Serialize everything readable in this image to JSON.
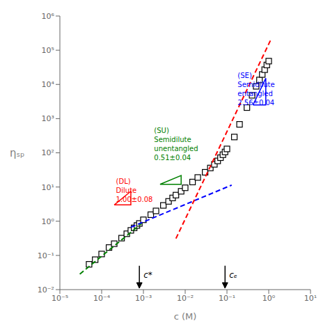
{
  "chart_data": {
    "type": "scatter",
    "xlabel": "c (M)",
    "ylabel": "ηₛₚ",
    "log": true,
    "grid": false,
    "xlim": [
      1e-05,
      10
    ],
    "ylim": [
      0.01,
      1000000
    ],
    "xticks": [
      {
        "value": 1e-05,
        "label": "10⁻⁵"
      },
      {
        "value": 0.0001,
        "label": "10⁻⁴"
      },
      {
        "value": 0.001,
        "label": "10⁻³"
      },
      {
        "value": 0.01,
        "label": "10⁻²"
      },
      {
        "value": 0.1,
        "label": "10⁻¹"
      },
      {
        "value": 1,
        "label": "10⁰"
      },
      {
        "value": 10,
        "label": "10¹"
      }
    ],
    "yticks": [
      {
        "value": 0.01,
        "label": "10⁻²"
      },
      {
        "value": 0.1,
        "label": "10⁻¹"
      },
      {
        "value": 1,
        "label": "10⁰"
      },
      {
        "value": 10,
        "label": "10¹"
      },
      {
        "value": 100,
        "label": "10²"
      },
      {
        "value": 1000,
        "label": "10³"
      },
      {
        "value": 10000,
        "label": "10⁴"
      },
      {
        "value": 100000,
        "label": "10⁵"
      },
      {
        "value": 1000000,
        "label": "10⁶"
      }
    ],
    "series": [
      {
        "type": "scatter",
        "color": "black",
        "marker": "square",
        "x": [
          5e-05,
          7e-05,
          0.0001,
          0.00015,
          0.0002,
          0.0003,
          0.0004,
          0.0005,
          0.0006,
          0.0007,
          0.0008,
          0.001,
          0.0015,
          0.002,
          0.003,
          0.004,
          0.005,
          0.006,
          0.008,
          0.01,
          0.015,
          0.02,
          0.03,
          0.04,
          0.05,
          0.06,
          0.07,
          0.08,
          0.09,
          0.1,
          0.15,
          0.2,
          0.3,
          0.4,
          0.5,
          0.6,
          0.7,
          0.8,
          0.9,
          1.0
        ],
        "values": [
          0.055,
          0.075,
          0.11,
          0.17,
          0.22,
          0.32,
          0.43,
          0.54,
          0.64,
          0.75,
          0.86,
          1.1,
          1.55,
          2.0,
          2.9,
          3.8,
          4.8,
          5.8,
          7.5,
          9.5,
          14.0,
          19.0,
          27.0,
          36.0,
          46.0,
          58.0,
          72.0,
          88.0,
          106.0,
          130.0,
          290.0,
          680.0,
          2100.0,
          4800.0,
          8800.0,
          13500.0,
          19500.0,
          27000.0,
          37000.0,
          48000.0
        ]
      },
      {
        "type": "line",
        "color": "green",
        "line_style": "dashed",
        "x": [
          3e-05,
          0.0009
        ],
        "values": [
          0.0285,
          0.855
        ]
      },
      {
        "type": "line",
        "color": "blue",
        "line_style": "dashed",
        "x": [
          0.0005,
          0.13
        ],
        "values": [
          0.6688,
          11.4013
        ]
      },
      {
        "type": "line",
        "color": "red",
        "line_style": "dashed",
        "x": [
          0.006,
          1.1
        ],
        "values": [
          0.3111,
          193531
        ]
      },
      {
        "type": "polygon",
        "color": "red",
        "x": [
          0.0002,
          0.0005,
          0.0005,
          0.0002
        ],
        "values": [
          3.0,
          3.0,
          7.5,
          3.0
        ]
      },
      {
        "type": "polygon",
        "color": "green",
        "x": [
          0.0025,
          0.008,
          0.008,
          0.0025
        ],
        "values": [
          12.0,
          12.0,
          21.7174,
          12.0
        ]
      },
      {
        "type": "polygon",
        "color": "blue",
        "x": [
          0.42,
          0.85,
          0.85,
          0.42
        ],
        "values": [
          2500.0,
          2500.0,
          15196.18,
          2500.0
        ]
      }
    ],
    "annotations": [
      {
        "text": "(DL)\nDilute\n1.00±0.08",
        "x": 0.00022,
        "y": 20.0,
        "color": "red"
      },
      {
        "text": "(SU)\nSemidilute\nunentangled\n0.51±0.04",
        "x": 0.0018,
        "y": 600.0,
        "color": "green"
      },
      {
        "text": "(SE)\nSemidilute\nentangled\n2.56±0.04",
        "x": 0.18,
        "y": 25000.0,
        "color": "blue"
      },
      {
        "text": "c*",
        "x": 0.0008,
        "y": 0.05,
        "y_end": 0.011,
        "color": "black"
      },
      {
        "text": "cₑ",
        "x": 0.09,
        "y": 0.05,
        "y_end": 0.011,
        "color": "black"
      }
    ]
  }
}
